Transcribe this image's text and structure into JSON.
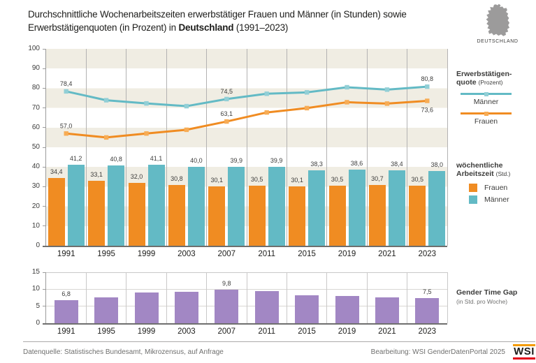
{
  "title": {
    "line1": "Durchschnittliche Wochenarbeitszeiten erwerbstätiger Frauen und Männer (in Stunden) sowie",
    "line2_pre": "Erwerbstätigenquoten (in Prozent) in ",
    "line2_bold": "Deutschland",
    "line2_post": " (1991–2023)"
  },
  "map": {
    "label": "DEUTSCHLAND"
  },
  "colors": {
    "orange": "#F08C22",
    "teal": "#63BAC5",
    "purple": "#A287C4",
    "stripe_beige": "#F0EDE3",
    "gridline_gray": "#B3B2B2",
    "axis_dark": "#6F6F6E",
    "label_dark": "#3C3C3B",
    "footer_gray": "#6F6F6E",
    "map_gray": "#9C9B9B",
    "wsi_orange": "#F59B00",
    "wsi_red": "#E2001A"
  },
  "legend_quote": {
    "title_line1": "Erwerbstätigen-",
    "title_line2": "quote",
    "unit": "(Prozent)",
    "items": [
      {
        "label": "Männer",
        "color": "#63BAC5",
        "marker_color": "#92CFD6"
      },
      {
        "label": "Frauen",
        "color": "#F08C22",
        "marker_color": "#F7AC55"
      }
    ]
  },
  "legend_hours": {
    "title_line1": "wöchentliche",
    "title_line2": "Arbeitszeit",
    "unit": "(Std.)",
    "items": [
      {
        "label": "Frauen",
        "color": "#F08C22"
      },
      {
        "label": "Männer",
        "color": "#63BAC5"
      }
    ]
  },
  "legend_gap": {
    "title": "Gender Time Gap",
    "unit": "(in Std. pro Woche)"
  },
  "chart_data": [
    {
      "type": "combo_bar_line",
      "categories": [
        "1991",
        "1995",
        "1999",
        "2003",
        "2007",
        "2011",
        "2015",
        "2019",
        "2021",
        "2023"
      ],
      "ylim": [
        0,
        100
      ],
      "yticks": [
        0,
        10,
        20,
        30,
        40,
        50,
        60,
        70,
        80,
        90,
        100
      ],
      "grid": "vertical lines between year groups, alternating beige/white horizontal bands",
      "bar_series": [
        {
          "name": "Frauen",
          "metric": "wöchentliche Arbeitszeit (Std.)",
          "color": "#F08C22",
          "values": [
            34.4,
            33.1,
            32.0,
            30.8,
            30.1,
            30.5,
            30.1,
            30.5,
            30.7,
            30.5
          ]
        },
        {
          "name": "Männer",
          "metric": "wöchentliche Arbeitszeit (Std.)",
          "color": "#63BAC5",
          "values": [
            41.2,
            40.8,
            41.1,
            40.0,
            39.9,
            39.9,
            38.3,
            38.6,
            38.4,
            38.0
          ]
        }
      ],
      "line_series": [
        {
          "name": "Männer",
          "metric": "Erwerbstätigenquote (Prozent)",
          "color": "#63BAC5",
          "marker_color": "#92CFD6",
          "values": [
            78.4,
            73.9,
            72.3,
            70.9,
            74.5,
            77.2,
            77.9,
            80.5,
            79.3,
            80.8
          ],
          "label_indices": [
            0,
            4,
            9
          ]
        },
        {
          "name": "Frauen",
          "metric": "Erwerbstätigenquote (Prozent)",
          "color": "#F08C22",
          "marker_color": "#F7AC55",
          "values": [
            57.0,
            55.0,
            57.0,
            58.9,
            63.1,
            67.7,
            69.9,
            72.9,
            72.2,
            73.6
          ],
          "label_indices": [
            0,
            4,
            9
          ]
        }
      ]
    },
    {
      "type": "bar",
      "name": "Gender Time Gap",
      "unit": "in Std. pro Woche",
      "categories": [
        "1991",
        "1995",
        "1999",
        "2003",
        "2007",
        "2011",
        "2015",
        "2019",
        "2021",
        "2023"
      ],
      "color": "#A287C4",
      "values": [
        6.8,
        7.7,
        9.1,
        9.2,
        9.8,
        9.4,
        8.2,
        8.1,
        7.7,
        7.5
      ],
      "label_indices": [
        0,
        4,
        9
      ],
      "ylim": [
        0,
        15
      ],
      "yticks": [
        0,
        5,
        10,
        15
      ]
    }
  ],
  "footer": {
    "source": "Datenquelle: Statistisches Bundesamt, Mikrozensus, auf Anfrage",
    "credit": "Bearbeitung: WSI GenderDatenPortal 2025",
    "logo_text": "WSI"
  }
}
